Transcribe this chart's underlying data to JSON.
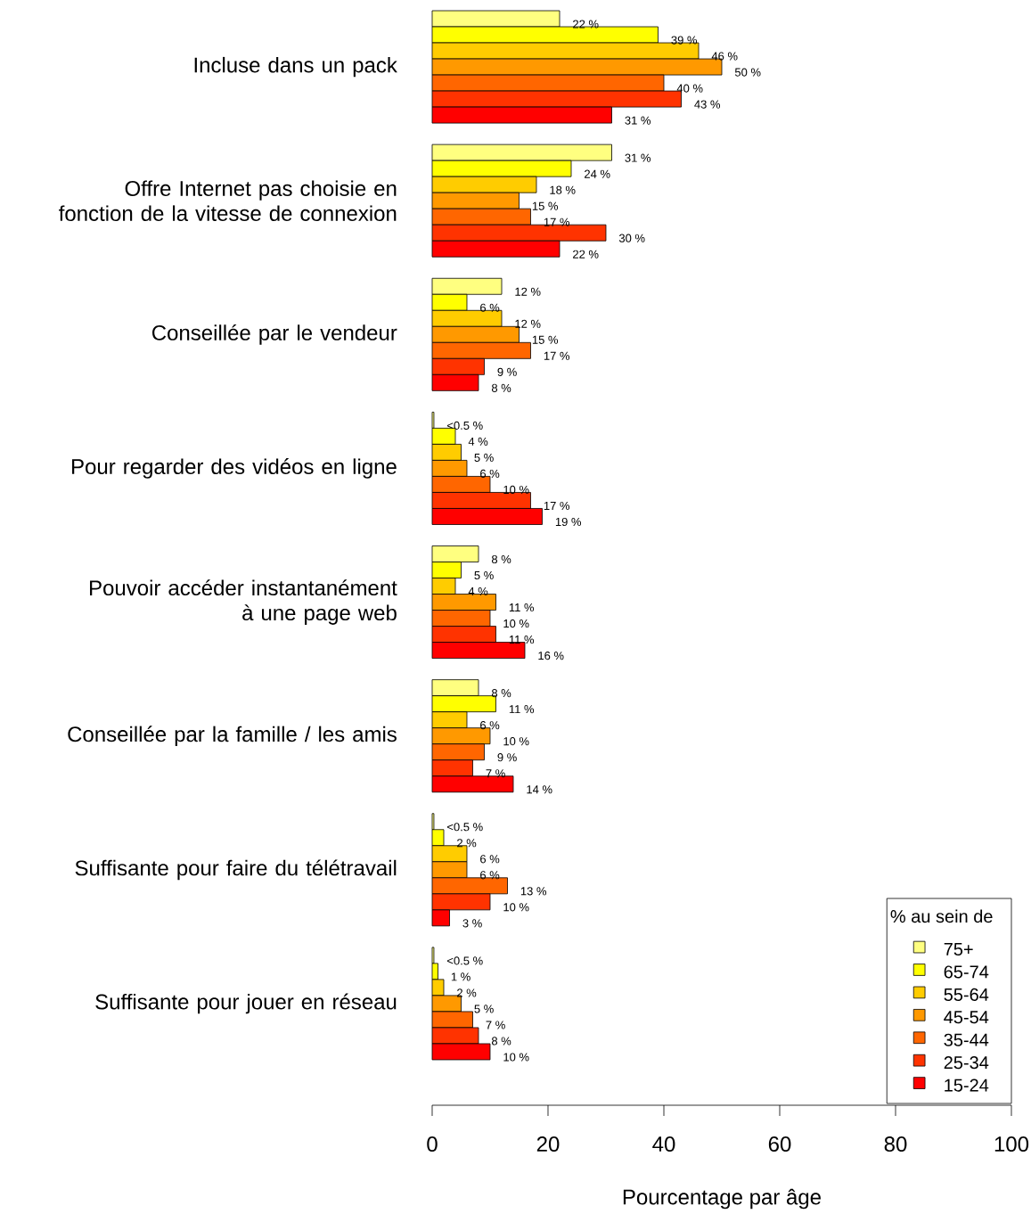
{
  "chart_data": {
    "type": "bar",
    "orientation": "horizontal",
    "categories": [
      "Incluse dans un pack",
      "Offre Internet pas choisie en fonction de la vitesse de connexion",
      "Conseillée par le vendeur",
      "Pour regarder des vidéos en ligne",
      "Pouvoir accéder instantanément à une page web",
      "Conseillée par la famille / les amis",
      "Suffisante pour faire du télétravail",
      "Suffisante pour jouer en réseau"
    ],
    "series": [
      {
        "name": "75+",
        "color": "#ffff80",
        "values": [
          22,
          31,
          12,
          0.3,
          8,
          8,
          0.3,
          0.3
        ],
        "value_labels": [
          "22 %",
          "31 %",
          "12 %",
          "<0.5 %",
          "8 %",
          "8 %",
          "<0.5 %",
          "<0.5 %"
        ]
      },
      {
        "name": "65-74",
        "color": "#ffff00",
        "values": [
          39,
          24,
          6,
          4,
          5,
          11,
          2,
          1
        ],
        "value_labels": [
          "39 %",
          "24 %",
          "6 %",
          "4 %",
          "5 %",
          "11 %",
          "2 %",
          "1 %"
        ]
      },
      {
        "name": "55-64",
        "color": "#ffcc00",
        "values": [
          46,
          18,
          12,
          5,
          4,
          6,
          6,
          2
        ],
        "value_labels": [
          "46 %",
          "18 %",
          "12 %",
          "5 %",
          "4 %",
          "6 %",
          "6 %",
          "2 %"
        ]
      },
      {
        "name": "45-54",
        "color": "#ff9900",
        "values": [
          50,
          15,
          15,
          6,
          11,
          10,
          6,
          5
        ],
        "value_labels": [
          "50 %",
          "15 %",
          "15 %",
          "6 %",
          "11 %",
          "10 %",
          "6 %",
          "5 %"
        ]
      },
      {
        "name": "35-44",
        "color": "#ff6600",
        "values": [
          40,
          17,
          17,
          10,
          10,
          9,
          13,
          7
        ],
        "value_labels": [
          "40 %",
          "17 %",
          "17 %",
          "10 %",
          "10 %",
          "9 %",
          "13 %",
          "7 %"
        ]
      },
      {
        "name": "25-34",
        "color": "#ff3300",
        "values": [
          43,
          30,
          9,
          17,
          11,
          7,
          10,
          8
        ],
        "value_labels": [
          "43 %",
          "30 %",
          "9 %",
          "17 %",
          "11 %",
          "7 %",
          "10 %",
          "8 %"
        ]
      },
      {
        "name": "15-24",
        "color": "#ff0000",
        "values": [
          31,
          22,
          8,
          19,
          16,
          14,
          3,
          10
        ],
        "value_labels": [
          "31 %",
          "22 %",
          "8 %",
          "19 %",
          "16 %",
          "14 %",
          "3 %",
          "10 %"
        ]
      }
    ],
    "xlim": [
      0,
      100
    ],
    "xticks": [
      0,
      20,
      40,
      60,
      80,
      100
    ],
    "xlabel": "Pourcentage par âge",
    "legend": "bottom right",
    "legend_title": "% au sein de"
  }
}
